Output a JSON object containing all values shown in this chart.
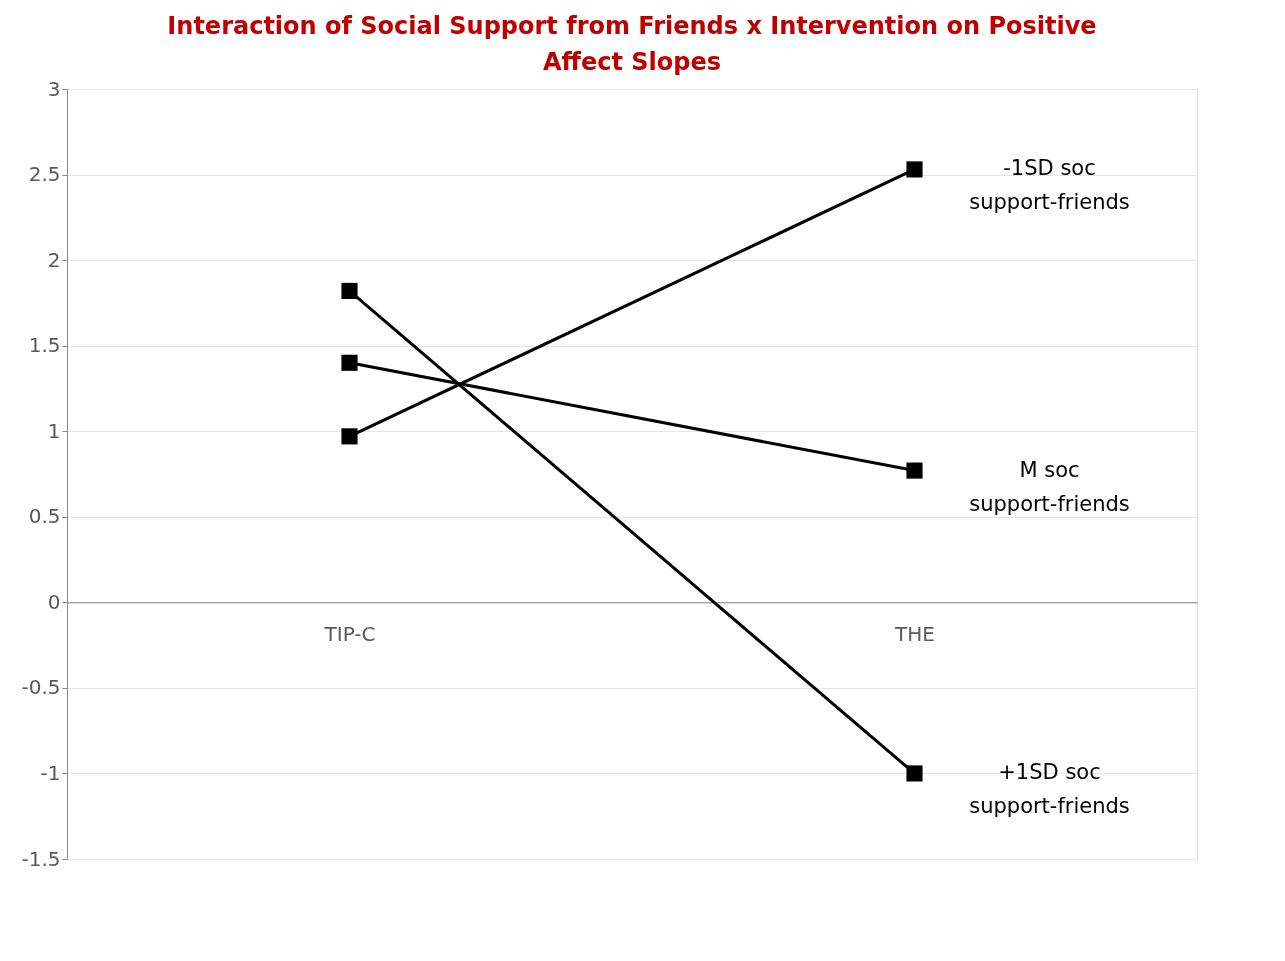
{
  "chart_data": {
    "type": "line",
    "title": "Interaction of Social Support from Friends x Intervention on Positive Affect Slopes",
    "categories": [
      "TIP-C",
      "THE"
    ],
    "series": [
      {
        "name": "-1SD soc support-friends",
        "color": "#000000",
        "values": [
          0.97,
          2.53
        ]
      },
      {
        "name": "M soc support-friends",
        "color": "#000000",
        "values": [
          1.4,
          0.77
        ]
      },
      {
        "name": "+1SD soc support-friends",
        "color": "#000000",
        "values": [
          1.82,
          -1.0
        ]
      }
    ],
    "ylim": [
      -1.5,
      3
    ],
    "yticks": [
      -1.5,
      -1,
      -0.5,
      0,
      0.5,
      1,
      1.5,
      2,
      2.5,
      3
    ],
    "grid": "y",
    "legend": false,
    "marker": "square",
    "line_style": "solid"
  }
}
